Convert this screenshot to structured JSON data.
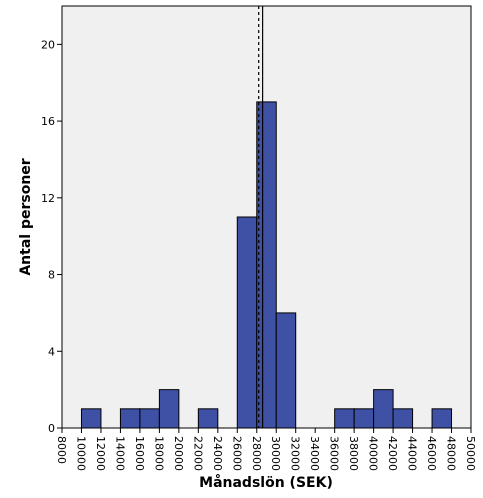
{
  "chart_data": {
    "type": "bar",
    "title": "",
    "xlabel": "Månadslön (SEK)",
    "ylabel": "Antal personer",
    "xlim": [
      8000,
      50000
    ],
    "ylim": [
      0,
      22
    ],
    "bin_width": 2000,
    "x_ticks": [
      "8000",
      "10000",
      "12000",
      "14000",
      "16000",
      "18000",
      "20000",
      "22000",
      "24000",
      "26000",
      "28000",
      "30000",
      "32000",
      "34000",
      "36000",
      "38000",
      "40000",
      "42000",
      "44000",
      "46000",
      "48000",
      "50000"
    ],
    "y_ticks": [
      "0",
      "4",
      "8",
      "12",
      "16",
      "20"
    ],
    "bins": [
      {
        "start": 10000,
        "count": 1
      },
      {
        "start": 14000,
        "count": 1
      },
      {
        "start": 16000,
        "count": 1
      },
      {
        "start": 18000,
        "count": 2
      },
      {
        "start": 22000,
        "count": 1
      },
      {
        "start": 26000,
        "count": 11
      },
      {
        "start": 28000,
        "count": 17
      },
      {
        "start": 30000,
        "count": 6
      },
      {
        "start": 36000,
        "count": 1
      },
      {
        "start": 38000,
        "count": 1
      },
      {
        "start": 40000,
        "count": 2
      },
      {
        "start": 42000,
        "count": 1
      },
      {
        "start": 46000,
        "count": 1
      }
    ],
    "reference_lines": [
      {
        "style": "dashed",
        "x": 28200
      },
      {
        "style": "solid",
        "x": 28600
      }
    ],
    "grid": false,
    "legend": "none",
    "bar_color": "#3f51a5",
    "plot_background": "#f0f0f0"
  }
}
